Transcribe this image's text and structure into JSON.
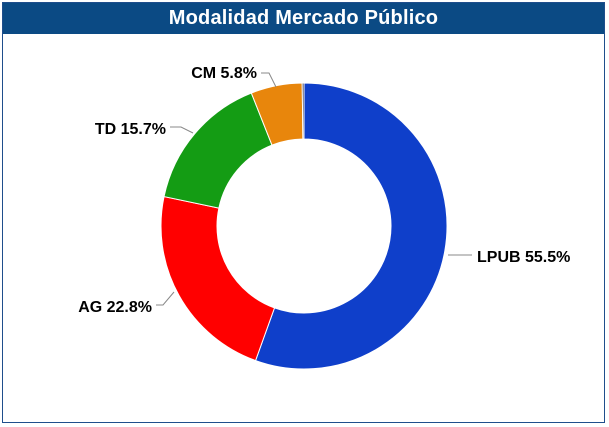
{
  "chart_data": {
    "type": "pie",
    "title": "Modalidad Mercado Público",
    "donut": true,
    "slices": [
      {
        "name": "LPUB",
        "value": 55.5,
        "label": "LPUB 55.5%",
        "color": "#0f3fca"
      },
      {
        "name": "AG",
        "value": 22.8,
        "label": "AG 22.8%",
        "color": "#ff0000"
      },
      {
        "name": "TD",
        "value": 15.7,
        "label": "TD 15.7%",
        "color": "#149c14"
      },
      {
        "name": "CM",
        "value": 5.8,
        "label": "CM 5.8%",
        "color": "#e8860c"
      },
      {
        "name": "",
        "value": 0.2,
        "label": "",
        "color": "#1a1a3a"
      }
    ]
  }
}
